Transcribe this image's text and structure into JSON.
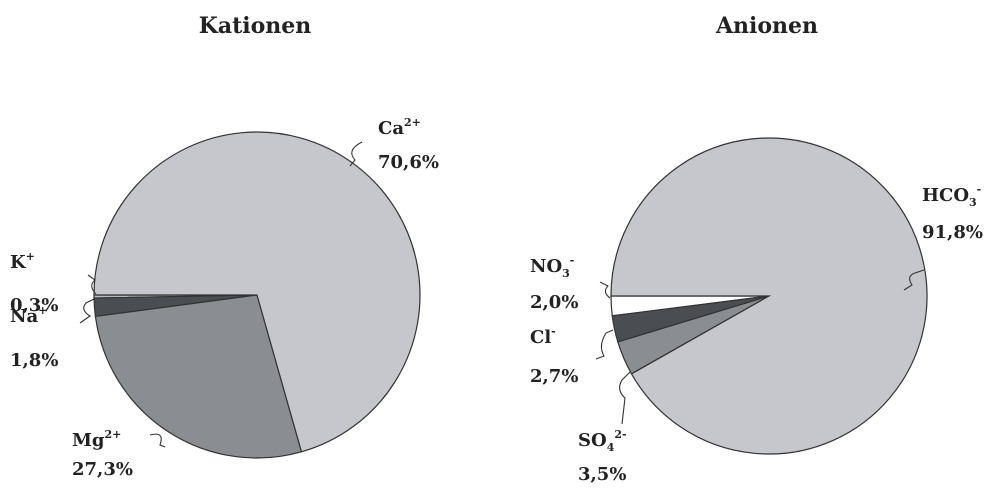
{
  "chart_data": [
    {
      "type": "pie",
      "title": "Kationen",
      "slices": [
        {
          "name": "Ca",
          "sup": "2+",
          "sub": "",
          "value_label": "70,6%",
          "value": 70.6,
          "color": "#c6c7cc"
        },
        {
          "name": "Mg",
          "sup": "2+",
          "sub": "",
          "value_label": "27,3%",
          "value": 27.3,
          "color": "#8a8d92"
        },
        {
          "name": "Na",
          "sup": "+",
          "sub": "",
          "value_label": "1,8%",
          "value": 1.8,
          "color": "#4a4d52"
        },
        {
          "name": "K",
          "sup": "+",
          "sub": "",
          "value_label": "0,3%",
          "value": 0.3,
          "color": "#b8bac0"
        }
      ]
    },
    {
      "type": "pie",
      "title": "Anionen",
      "slices": [
        {
          "name": "HCO",
          "sup": "-",
          "sub": "3",
          "value_label": "91,8%",
          "value": 91.8,
          "color": "#c6c7cc"
        },
        {
          "name": "SO",
          "sup": "2-",
          "sub": "4",
          "value_label": "3,5%",
          "value": 3.5,
          "color": "#8a8d92"
        },
        {
          "name": "Cl",
          "sup": "-",
          "sub": "",
          "value_label": "2,7%",
          "value": 2.7,
          "color": "#4a4d52"
        },
        {
          "name": "NO",
          "sup": "-",
          "sub": "3",
          "value_label": "2,0%",
          "value": 2.0,
          "color": "#ffffff"
        }
      ]
    }
  ]
}
